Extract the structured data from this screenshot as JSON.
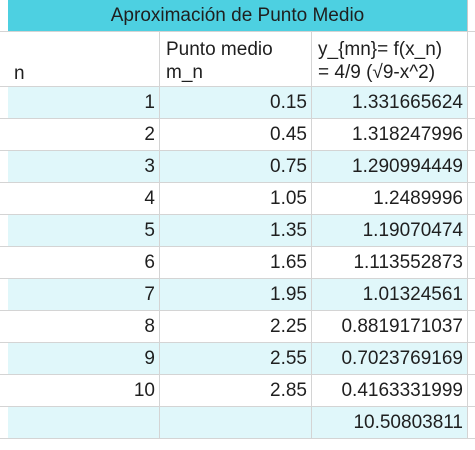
{
  "title": "Aproximación de Punto Medio",
  "headers": {
    "n": "n",
    "mid_line1": "Punto medio",
    "mid_line2": "m_n",
    "y_line1": "y_{mn}= f(x_n)",
    "y_line2": "=  4/9 (√9-x^2)"
  },
  "rows": [
    [
      "1",
      "0.15",
      "1.331665624"
    ],
    [
      "2",
      "0.45",
      "1.318247996"
    ],
    [
      "3",
      "0.75",
      "1.290994449"
    ],
    [
      "4",
      "1.05",
      "1.2489996"
    ],
    [
      "5",
      "1.35",
      "1.19070474"
    ],
    [
      "6",
      "1.65",
      "1.113552873"
    ],
    [
      "7",
      "1.95",
      "1.01324561"
    ],
    [
      "8",
      "2.25",
      "0.8819171037"
    ],
    [
      "9",
      "2.55",
      "0.7023769169"
    ],
    [
      "10",
      "2.85",
      "0.4163331999"
    ]
  ],
  "total": "10.50803811",
  "colors": {
    "title_bg": "#4dd0e1",
    "band_bg": "#e0f7fa",
    "grid": "#d4d4d4"
  }
}
